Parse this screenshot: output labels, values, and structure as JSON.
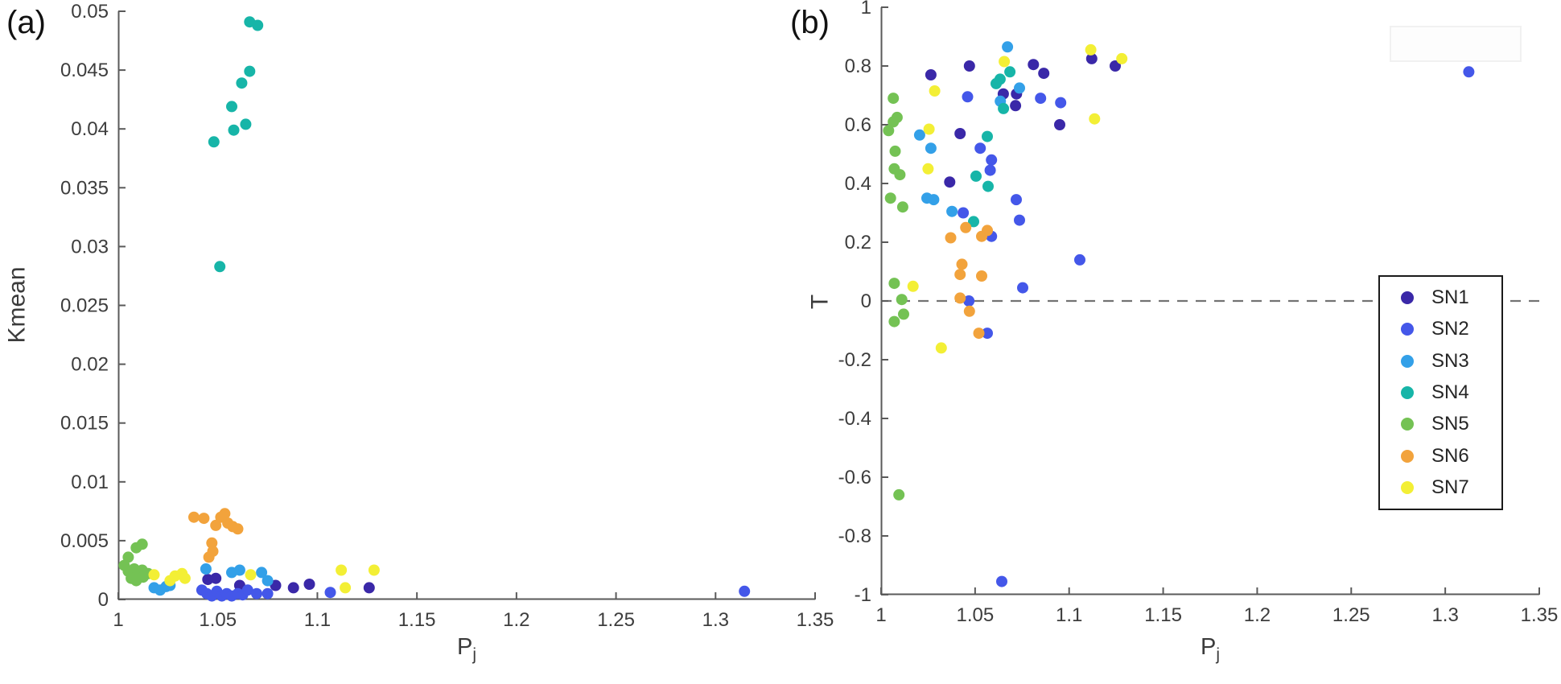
{
  "figure": {
    "panel_a_tag": "(a)",
    "panel_b_tag": "(b)"
  },
  "styles": {
    "axis_color": "#5a5a5a",
    "tick_label_color": "#3d3d3d",
    "zero_line_color": "#737373",
    "marker_radius": 7
  },
  "legend": {
    "entries": [
      {
        "label": "SN1",
        "color": "#3a28a8"
      },
      {
        "label": "SN2",
        "color": "#4457e9"
      },
      {
        "label": "SN3",
        "color": "#33a0e8"
      },
      {
        "label": "SN4",
        "color": "#17b5a8"
      },
      {
        "label": "SN5",
        "color": "#74c254"
      },
      {
        "label": "SN6",
        "color": "#f2a33c"
      },
      {
        "label": "SN7",
        "color": "#f3ef35"
      }
    ]
  },
  "chart_data": [
    {
      "type": "scatter",
      "panel": "a",
      "xlabel_base": "P",
      "xlabel_sub": "j",
      "ylabel": "Kmean",
      "xlim": [
        1,
        1.35
      ],
      "ylim": [
        0,
        0.05
      ],
      "grid": false,
      "xticks": [
        1,
        1.05,
        1.1,
        1.15,
        1.2,
        1.25,
        1.3,
        1.35
      ],
      "xtick_labels": [
        "1",
        "1.05",
        "1.1",
        "1.15",
        "1.2",
        "1.25",
        "1.3",
        "1.35"
      ],
      "yticks": [
        0,
        0.005,
        0.01,
        0.015,
        0.02,
        0.025,
        0.03,
        0.035,
        0.04,
        0.045,
        0.05
      ],
      "ytick_labels": [
        "0",
        "0.005",
        "0.01",
        "0.015",
        "0.02",
        "0.025",
        "0.03",
        "0.035",
        "0.04",
        "0.045",
        "0.05"
      ],
      "series": [
        {
          "name": "SN1",
          "color": "#3a28a8",
          "points": [
            [
              1.045,
              0.0017
            ],
            [
              1.049,
              0.0018
            ],
            [
              1.061,
              0.0012
            ],
            [
              1.079,
              0.0012
            ],
            [
              1.088,
              0.001
            ],
            [
              1.096,
              0.0013
            ],
            [
              1.126,
              0.001
            ]
          ]
        },
        {
          "name": "SN2",
          "color": "#4457e9",
          "points": [
            [
              1.042,
              0.0008
            ],
            [
              1.0445,
              0.0005
            ],
            [
              1.047,
              0.0003
            ],
            [
              1.0495,
              0.0007
            ],
            [
              1.052,
              0.0003
            ],
            [
              1.0545,
              0.0005
            ],
            [
              1.057,
              0.0003
            ],
            [
              1.06,
              0.0005
            ],
            [
              1.0625,
              0.0004
            ],
            [
              1.065,
              0.0008
            ],
            [
              1.0695,
              0.0005
            ],
            [
              1.075,
              0.0005
            ],
            [
              1.1065,
              0.0006
            ],
            [
              1.3145,
              0.0007
            ]
          ]
        },
        {
          "name": "SN3",
          "color": "#33a0e8",
          "points": [
            [
              1.018,
              0.001
            ],
            [
              1.021,
              0.0008
            ],
            [
              1.024,
              0.0011
            ],
            [
              1.026,
              0.0012
            ],
            [
              1.044,
              0.0026
            ],
            [
              1.057,
              0.0023
            ],
            [
              1.061,
              0.0025
            ],
            [
              1.072,
              0.0023
            ],
            [
              1.075,
              0.0016
            ]
          ]
        },
        {
          "name": "SN4",
          "color": "#17b5a8",
          "points": [
            [
              1.066,
              0.0491
            ],
            [
              1.07,
              0.0488
            ],
            [
              1.066,
              0.0449
            ],
            [
              1.062,
              0.0439
            ],
            [
              1.057,
              0.0419
            ],
            [
              1.064,
              0.0404
            ],
            [
              1.058,
              0.0399
            ],
            [
              1.048,
              0.0389
            ],
            [
              1.051,
              0.0283
            ]
          ]
        },
        {
          "name": "SN5",
          "color": "#74c254",
          "points": [
            [
              1.005,
              0.0036
            ],
            [
              1.009,
              0.0044
            ],
            [
              1.012,
              0.0047
            ],
            [
              1.003,
              0.0029
            ],
            [
              1.005,
              0.0024
            ],
            [
              1.008,
              0.0026
            ],
            [
              1.01,
              0.0023
            ],
            [
              1.012,
              0.0025
            ],
            [
              1.0065,
              0.0018
            ],
            [
              1.009,
              0.0016
            ],
            [
              1.0125,
              0.0019
            ],
            [
              1.015,
              0.0022
            ]
          ]
        },
        {
          "name": "SN6",
          "color": "#f2a33c",
          "points": [
            [
              1.038,
              0.007
            ],
            [
              1.043,
              0.0069
            ],
            [
              1.049,
              0.0063
            ],
            [
              1.0515,
              0.007
            ],
            [
              1.0535,
              0.0073
            ],
            [
              1.055,
              0.0065
            ],
            [
              1.0575,
              0.0062
            ],
            [
              1.06,
              0.006
            ],
            [
              1.047,
              0.0048
            ],
            [
              1.0475,
              0.0041
            ],
            [
              1.0455,
              0.0036
            ]
          ]
        },
        {
          "name": "SN7",
          "color": "#f3ef35",
          "points": [
            [
              1.018,
              0.0021
            ],
            [
              1.026,
              0.0016
            ],
            [
              1.0285,
              0.002
            ],
            [
              1.032,
              0.0022
            ],
            [
              1.0335,
              0.0018
            ],
            [
              1.0665,
              0.0021
            ],
            [
              1.112,
              0.0025
            ],
            [
              1.114,
              0.001
            ],
            [
              1.1285,
              0.0025
            ]
          ]
        }
      ]
    },
    {
      "type": "scatter",
      "panel": "b",
      "xlabel_base": "P",
      "xlabel_sub": "j",
      "ylabel": "T",
      "xlim": [
        1,
        1.35
      ],
      "ylim": [
        -1,
        1
      ],
      "grid": false,
      "zero_line": true,
      "legend_position": "right",
      "xticks": [
        1,
        1.05,
        1.1,
        1.15,
        1.2,
        1.25,
        1.3,
        1.35
      ],
      "xtick_labels": [
        "1",
        "1.05",
        "1.1",
        "1.15",
        "1.2",
        "1.25",
        "1.3",
        "1.35"
      ],
      "yticks": [
        -1,
        -0.8,
        -0.6,
        -0.4,
        -0.2,
        0,
        0.2,
        0.4,
        0.6,
        0.8,
        1
      ],
      "ytick_labels": [
        "-1",
        "-0.8",
        "-0.6",
        "-0.4",
        "-0.2",
        "0",
        "0.2",
        "0.4",
        "0.6",
        "0.8",
        "1"
      ],
      "series": [
        {
          "name": "SN1",
          "color": "#3a28a8",
          "points": [
            [
              1.0265,
              0.77
            ],
            [
              1.047,
              0.8
            ],
            [
              1.065,
              0.705
            ],
            [
              1.072,
              0.705
            ],
            [
              1.0715,
              0.665
            ],
            [
              1.081,
              0.805
            ],
            [
              1.0865,
              0.775
            ],
            [
              1.095,
              0.6
            ],
            [
              1.112,
              0.825
            ],
            [
              1.1245,
              0.8
            ],
            [
              1.042,
              0.57
            ],
            [
              1.0365,
              0.405
            ]
          ]
        },
        {
          "name": "SN2",
          "color": "#4457e9",
          "points": [
            [
              1.046,
              0.695
            ],
            [
              1.0848,
              0.69
            ],
            [
              1.0955,
              0.675
            ],
            [
              1.0527,
              0.52
            ],
            [
              1.0587,
              0.48
            ],
            [
              1.058,
              0.445
            ],
            [
              1.0719,
              0.345
            ],
            [
              1.0736,
              0.275
            ],
            [
              1.0437,
              0.3
            ],
            [
              1.0587,
              0.22
            ],
            [
              1.0753,
              0.045
            ],
            [
              1.1057,
              0.14
            ],
            [
              1.0467,
              0.0
            ],
            [
              1.0565,
              -0.11
            ],
            [
              1.0642,
              -0.955
            ],
            [
              1.3125,
              0.78
            ]
          ]
        },
        {
          "name": "SN3",
          "color": "#33a0e8",
          "points": [
            [
              1.0672,
              0.865
            ],
            [
              1.0736,
              0.725
            ],
            [
              1.0634,
              0.68
            ],
            [
              1.0205,
              0.565
            ],
            [
              1.0265,
              0.52
            ],
            [
              1.0244,
              0.35
            ],
            [
              1.028,
              0.345
            ],
            [
              1.0377,
              0.305
            ]
          ]
        },
        {
          "name": "SN4",
          "color": "#17b5a8",
          "points": [
            [
              1.0633,
              0.755
            ],
            [
              1.0612,
              0.74
            ],
            [
              1.0685,
              0.78
            ],
            [
              1.0651,
              0.655
            ],
            [
              1.0565,
              0.56
            ],
            [
              1.0569,
              0.39
            ],
            [
              1.0505,
              0.425
            ],
            [
              1.0492,
              0.27
            ]
          ]
        },
        {
          "name": "SN5",
          "color": "#74c254",
          "points": [
            [
              1.0065,
              0.69
            ],
            [
              1.0085,
              0.625
            ],
            [
              1.0065,
              0.61
            ],
            [
              1.004,
              0.58
            ],
            [
              1.0075,
              0.51
            ],
            [
              1.007,
              0.45
            ],
            [
              1.01,
              0.43
            ],
            [
              1.005,
              0.35
            ],
            [
              1.0115,
              0.32
            ],
            [
              1.007,
              0.06
            ],
            [
              1.011,
              0.005
            ],
            [
              1.012,
              -0.045
            ],
            [
              1.007,
              -0.07
            ],
            [
              1.0095,
              -0.66
            ]
          ]
        },
        {
          "name": "SN6",
          "color": "#f2a33c",
          "points": [
            [
              1.045,
              0.25
            ],
            [
              1.0565,
              0.24
            ],
            [
              1.037,
              0.215
            ],
            [
              1.0535,
              0.22
            ],
            [
              1.043,
              0.125
            ],
            [
              1.042,
              0.09
            ],
            [
              1.0535,
              0.085
            ],
            [
              1.042,
              0.01
            ],
            [
              1.047,
              -0.035
            ],
            [
              1.052,
              -0.11
            ]
          ]
        },
        {
          "name": "SN7",
          "color": "#f3ef35",
          "points": [
            [
              1.0285,
              0.715
            ],
            [
              1.0655,
              0.815
            ],
            [
              1.1115,
              0.855
            ],
            [
              1.128,
              0.825
            ],
            [
              1.1135,
              0.62
            ],
            [
              1.0255,
              0.585
            ],
            [
              1.025,
              0.45
            ],
            [
              1.017,
              0.05
            ],
            [
              1.032,
              -0.16
            ]
          ]
        }
      ]
    }
  ]
}
